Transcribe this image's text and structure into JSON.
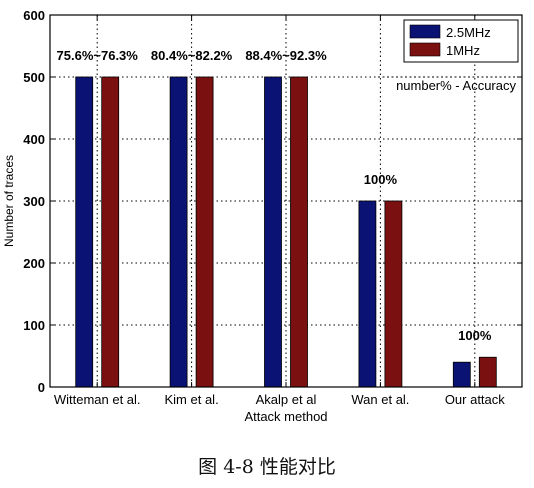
{
  "caption": "图 4-8    性能对比",
  "chart_data": {
    "type": "bar",
    "categories": [
      "Witteman et al.",
      "Kim et al.",
      "Akalp et al",
      "Wan et al.",
      "Our attack"
    ],
    "series": [
      {
        "name": "2.5MHz",
        "color": "#0a1273",
        "values": [
          500,
          500,
          500,
          300,
          40
        ]
      },
      {
        "name": "1MHz",
        "color": "#7a1010",
        "values": [
          500,
          500,
          500,
          300,
          48
        ]
      }
    ],
    "bar_labels": [
      "75.6%~76.3%",
      "80.4%~82.2%",
      "88.4%~92.3%",
      "100%",
      "100%"
    ],
    "xlabel": "Attack method",
    "ylabel": "Number of traces",
    "ylim": [
      0,
      600
    ],
    "yticks": [
      "0",
      "100",
      "200",
      "300",
      "400",
      "500",
      "600"
    ],
    "annotation": "number% - Accuracy",
    "legend_position": "top-right",
    "grid": "dotted"
  }
}
